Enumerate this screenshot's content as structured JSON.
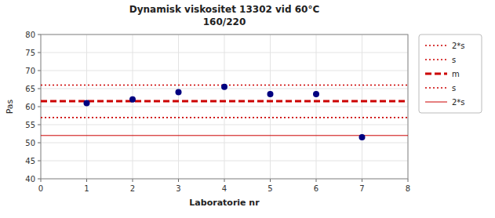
{
  "chart_data": {
    "type": "scatter",
    "title": "Dynamisk viskositet 13302 vid 60°C",
    "subtitle": "160/220",
    "xlabel": "Laboratorie nr",
    "ylabel": "Pas",
    "x": [
      1,
      2,
      3,
      4,
      5,
      6,
      7
    ],
    "series": [
      {
        "type": "scatter",
        "color": "#000080",
        "marker": "circle",
        "values": [
          61.0,
          62.0,
          64.0,
          65.5,
          63.5,
          63.5,
          51.5
        ]
      },
      {
        "name": "2*s",
        "type": "hline",
        "value": 66.0,
        "color": "#CC0000",
        "line_style": "dotted"
      },
      {
        "name": "s",
        "type": "hline",
        "value": 57.0,
        "color": "#CC0000",
        "line_style": "dotted"
      },
      {
        "name": "m",
        "type": "hline",
        "value": 61.5,
        "color": "#CC0000",
        "line_style": "dashed"
      },
      {
        "name": "s",
        "type": "hline",
        "value": 57.0,
        "color": "#CC0000",
        "line_style": "dotted"
      },
      {
        "name": "2*s",
        "type": "hline",
        "value": 52.0,
        "color": "#CC0000",
        "line_style": "solid"
      }
    ],
    "xlim": [
      0,
      8
    ],
    "xticks": [
      0,
      1,
      2,
      3,
      4,
      5,
      6,
      7,
      8
    ],
    "ylim": [
      40,
      80
    ],
    "yticks": [
      40,
      45,
      50,
      55,
      60,
      65,
      70,
      75,
      80
    ],
    "grid": true,
    "legend": "right"
  }
}
